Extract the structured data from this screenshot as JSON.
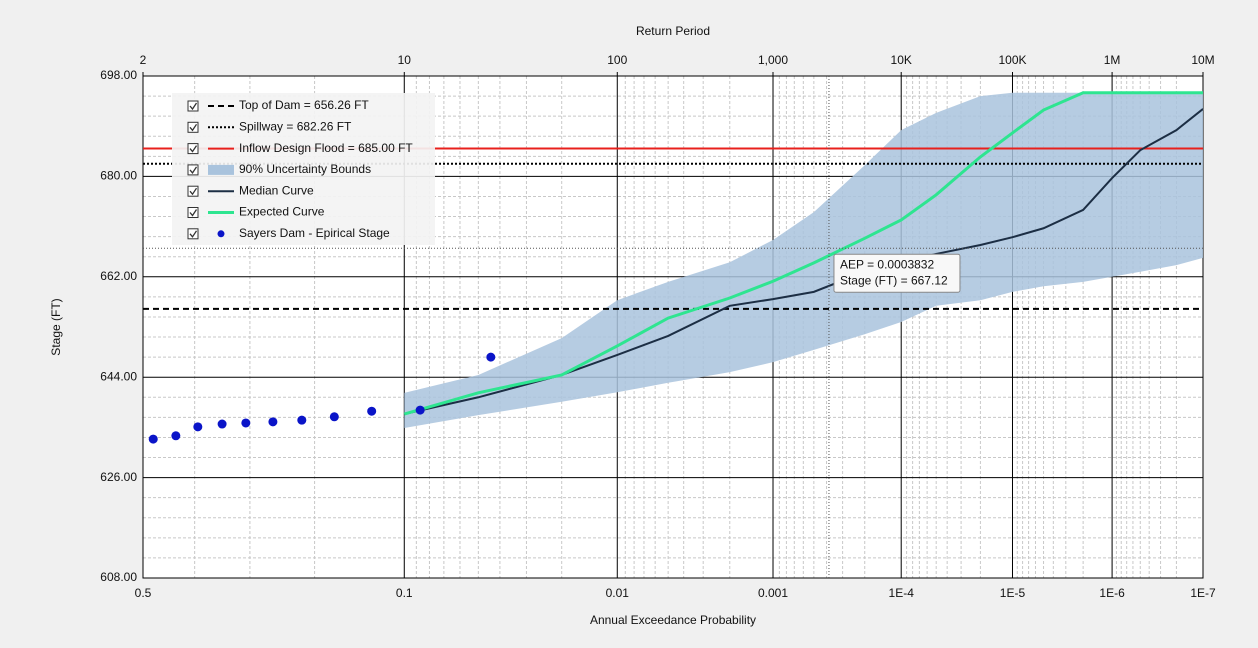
{
  "chart_data": {
    "type": "line",
    "xscale": "normal-probability",
    "title": "Return Period",
    "xlabel": "Annual Exceedance Probability",
    "ylabel": "Stage (FT)",
    "xlim": [
      0.5,
      1e-07
    ],
    "ylim": [
      608,
      698
    ],
    "xticks": [
      0.5,
      0.1,
      0.01,
      0.001,
      {
        "value": 0.0001,
        "label": "1E-4"
      },
      {
        "value": 1e-05,
        "label": "1E-5"
      },
      {
        "value": 1e-06,
        "label": "1E-6"
      },
      {
        "value": 1e-07,
        "label": "1E-7"
      }
    ],
    "x2ticks": [
      2,
      10,
      100,
      {
        "value": 1000,
        "label": "1,000"
      },
      {
        "value": 10000,
        "label": "10K"
      },
      {
        "value": 100000,
        "label": "100K"
      },
      {
        "value": 1000000,
        "label": "1M"
      },
      {
        "value": 10000000,
        "label": "10M"
      }
    ],
    "yticks": [
      {
        "value": 608,
        "label": "608.00"
      },
      {
        "value": 626,
        "label": "626.00"
      },
      {
        "value": 644,
        "label": "644.00"
      },
      {
        "value": 662,
        "label": "662.00"
      },
      {
        "value": 680,
        "label": "680.00"
      },
      {
        "value": 698,
        "label": "698.00"
      }
    ],
    "xminorticks": [
      0.4,
      0.3,
      0.2,
      0.09,
      0.08,
      0.07,
      0.06,
      0.05,
      0.04,
      0.03,
      0.02,
      0.009,
      0.008,
      0.007,
      0.006,
      0.005,
      0.004,
      0.003,
      0.002,
      0.0009,
      0.0008,
      0.0007,
      0.0006,
      0.0005,
      0.0004,
      0.0003,
      0.0002,
      9e-05,
      8e-05,
      7e-05,
      6e-05,
      5e-05,
      4e-05,
      3e-05,
      2e-05,
      9e-06,
      8e-06,
      7e-06,
      6e-06,
      5e-06,
      4e-06,
      3e-06,
      2e-06,
      9e-07,
      8e-07,
      7e-07,
      6e-07,
      5e-07,
      4e-07,
      3e-07,
      2e-07
    ],
    "yminorticks": [
      611.6,
      615.2,
      618.8,
      622.4,
      629.6,
      633.2,
      636.8,
      640.4,
      647.6,
      651.2,
      654.8,
      658.4,
      665.6,
      669.2,
      672.8,
      676.4,
      683.6,
      687.2,
      690.8,
      694.4
    ],
    "grid": true,
    "legend": "upper-left",
    "x": [
      0.1,
      0.05,
      0.02,
      0.01,
      0.005,
      0.002,
      0.001,
      0.0005,
      0.0002,
      0.0001,
      5e-05,
      2e-05,
      1e-05,
      5e-06,
      2e-06,
      1e-06,
      5e-07,
      2e-07,
      1e-07
    ],
    "series": [
      {
        "name": "Top of Dam = 656.26 FT",
        "type": "hline",
        "style": "dashed",
        "color": "#000000",
        "value": 656.26
      },
      {
        "name": "Spillway = 682.26 FT",
        "type": "hline",
        "style": "dotted",
        "color": "#000000",
        "value": 682.26
      },
      {
        "name": "Inflow Design Flood = 685.00 FT",
        "type": "hline",
        "style": "solid",
        "color": "#e8201c",
        "value": 685.0
      },
      {
        "name": "90% Uncertainty Bounds",
        "type": "band",
        "color": "#a9c3dd",
        "upper": [
          641.2,
          644.4,
          651.0,
          657.8,
          661.1,
          664.6,
          668.6,
          673.6,
          682.0,
          688.3,
          691.4,
          694.4,
          695.0,
          695.0,
          695.0,
          695.0,
          695.0,
          695.0,
          695.0
        ],
        "lower": [
          634.9,
          637.2,
          639.6,
          641.3,
          643.0,
          644.9,
          646.7,
          648.9,
          651.7,
          653.9,
          656.8,
          657.8,
          659.3,
          660.3,
          661.1,
          662.0,
          662.9,
          664.1,
          665.4
        ]
      },
      {
        "name": "Median Curve",
        "type": "line",
        "color": "#1c2e44",
        "width": 2,
        "values": [
          637.4,
          640.4,
          644.4,
          648.0,
          651.4,
          656.8,
          658.0,
          659.3,
          662.9,
          664.6,
          666.1,
          667.7,
          669.1,
          670.7,
          674.0,
          679.7,
          684.7,
          688.3,
          692.1
        ]
      },
      {
        "name": "Expected Curve",
        "type": "line",
        "color": "#2ee590",
        "width": 3,
        "values": [
          637.4,
          641.2,
          644.4,
          649.6,
          654.6,
          658.2,
          661.2,
          664.5,
          668.9,
          672.2,
          676.7,
          683.5,
          687.8,
          691.9,
          695.0,
          695.0,
          695.0,
          695.0,
          695.0
        ]
      },
      {
        "name": "Sayers Dam - Epirical Stage",
        "type": "scatter",
        "color": "#0a14c8",
        "x": [
          0.48,
          0.436,
          0.394,
          0.349,
          0.307,
          0.262,
          0.218,
          0.174,
          0.131,
          0.087,
          0.044
        ],
        "values": [
          632.9,
          633.5,
          635.1,
          635.6,
          635.8,
          636.0,
          636.3,
          636.9,
          637.9,
          638.1,
          647.6
        ]
      }
    ],
    "annotation": {
      "x": 0.0003832,
      "y": 667.12,
      "labels": [
        "AEP = 0.0003832",
        "Stage (FT) = 667.12"
      ]
    }
  }
}
